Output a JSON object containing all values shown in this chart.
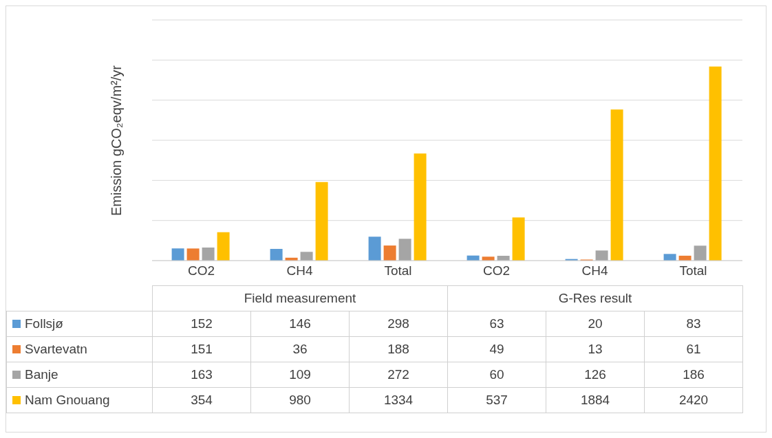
{
  "chart_data": {
    "type": "bar",
    "ylabel": "Emission gCO₂eqv/m²/yr",
    "categories": [
      "CO2",
      "CH4",
      "Total",
      "CO2",
      "CH4",
      "Total"
    ],
    "annotations": [
      "Field measurement",
      "G-Res result"
    ],
    "series": [
      {
        "name": "Follsjø",
        "color": "#5b9bd5",
        "values": [
          152,
          146,
          298,
          63,
          20,
          83
        ]
      },
      {
        "name": "Svartevatn",
        "color": "#ed7d31",
        "values": [
          151,
          36,
          188,
          49,
          13,
          61
        ]
      },
      {
        "name": "Banje",
        "color": "#a5a5a5",
        "values": [
          163,
          109,
          272,
          60,
          126,
          186
        ]
      },
      {
        "name": "Nam Gnouang",
        "color": "#ffc000",
        "values": [
          354,
          980,
          1334,
          537,
          1884,
          2420
        ]
      }
    ],
    "ylim": [
      0,
      3000
    ],
    "yticks": [
      {
        "value": 0,
        "label": null
      },
      {
        "value": 500,
        "label": null
      },
      {
        "value": 1000,
        "label": null
      },
      {
        "value": 1500,
        "label": null
      },
      {
        "value": 2000,
        "label": null
      },
      {
        "value": 2500,
        "label": null
      },
      {
        "value": 3000,
        "label": null
      }
    ],
    "grid": "y",
    "legend": "bottom",
    "data_labels": true
  }
}
